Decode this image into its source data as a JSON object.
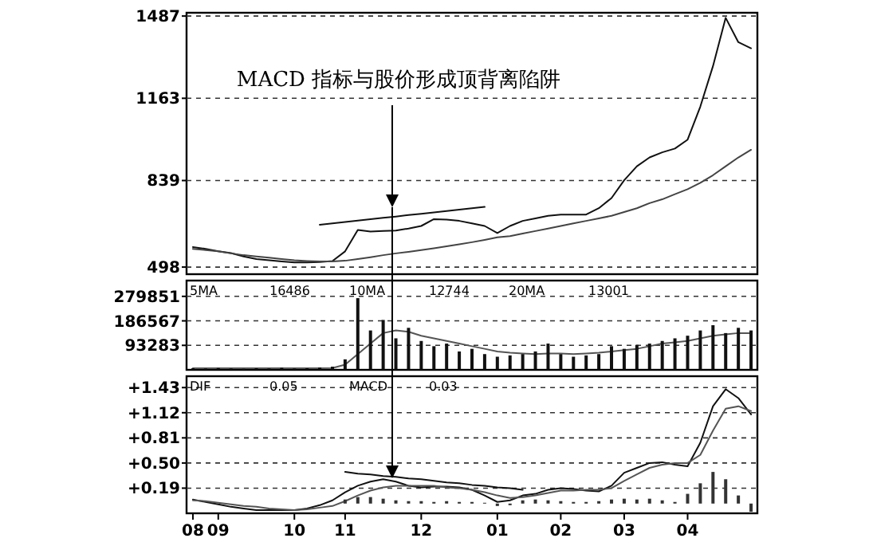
{
  "chart_data": [
    {
      "type": "line",
      "title": "MACD 指标与股价形成顶背离陷阱",
      "categories": [
        "08",
        null,
        "09",
        null,
        null,
        null,
        null,
        null,
        "10",
        null,
        null,
        null,
        "11",
        null,
        null,
        null,
        null,
        null,
        "12",
        null,
        null,
        null,
        null,
        null,
        "01",
        null,
        null,
        null,
        null,
        "02",
        null,
        null,
        null,
        null,
        "03",
        null,
        null,
        null,
        null,
        "04",
        null,
        null,
        null,
        null,
        null
      ],
      "ylim": [
        470,
        1500
      ],
      "yticks": [
        498,
        839,
        1163,
        1487
      ],
      "grid": "y",
      "tick_labels": "y",
      "series": [
        {
          "color": "#111111",
          "values": [
            577,
            570,
            560,
            553,
            540,
            530,
            525,
            520,
            516,
            516,
            518,
            522,
            560,
            644,
            638,
            640,
            642,
            650,
            660,
            687,
            685,
            680,
            670,
            660,
            632,
            660,
            680,
            690,
            700,
            705,
            705,
            705,
            730,
            770,
            840,
            895,
            930,
            950,
            965,
            1000,
            1130,
            1290,
            1480,
            1384,
            1360
          ]
        },
        {
          "color": "#444444",
          "values": [
            570,
            565,
            560,
            552,
            545,
            540,
            535,
            530,
            525,
            522,
            520,
            520,
            523,
            530,
            537,
            545,
            552,
            558,
            565,
            572,
            580,
            588,
            596,
            605,
            615,
            620,
            630,
            640,
            650,
            660,
            670,
            680,
            690,
            700,
            715,
            730,
            750,
            765,
            785,
            805,
            830,
            860,
            895,
            930,
            960
          ]
        },
        {
          "color": "#111111",
          "values": [
            null,
            null,
            null,
            null,
            null,
            null,
            null,
            null,
            null,
            null,
            665,
            670,
            676,
            681,
            687,
            692,
            697,
            703,
            708,
            713,
            719,
            724,
            730,
            735,
            null,
            null,
            null,
            null,
            null,
            null,
            null,
            null,
            null,
            null,
            null,
            null,
            null,
            null,
            null,
            null,
            null,
            null,
            null,
            null,
            null
          ]
        }
      ]
    },
    {
      "type": "bar",
      "categories": [
        "08",
        null,
        "09",
        null,
        null,
        null,
        null,
        null,
        "10",
        null,
        null,
        null,
        "11",
        null,
        null,
        null,
        null,
        null,
        "12",
        null,
        null,
        null,
        null,
        null,
        "01",
        null,
        null,
        null,
        null,
        "02",
        null,
        null,
        null,
        null,
        "03",
        null,
        null,
        null,
        null,
        "04",
        null,
        null,
        null,
        null,
        null
      ],
      "ylim": [
        0,
        340000
      ],
      "yticks": [
        93283,
        186567,
        279851
      ],
      "grid": "y",
      "tick_labels": "y",
      "annotations": [
        "5MA",
        "16486",
        "10MA",
        "12744",
        "20MA",
        "13001"
      ],
      "series": [
        {
          "color": "#111111",
          "values": [
            6000,
            5000,
            7000,
            5000,
            4000,
            6000,
            5000,
            8000,
            5000,
            6000,
            9000,
            12000,
            40000,
            273000,
            150000,
            190000,
            120000,
            160000,
            110000,
            90000,
            100000,
            70000,
            80000,
            60000,
            50000,
            55000,
            60000,
            70000,
            100000,
            60000,
            50000,
            55000,
            60000,
            90000,
            80000,
            95000,
            100000,
            110000,
            120000,
            130000,
            150000,
            170000,
            140000,
            160000,
            150000
          ]
        },
        {
          "type": "line",
          "color": "#555555",
          "values": [
            6000,
            6000,
            6000,
            6000,
            6000,
            6000,
            6000,
            6000,
            6000,
            6000,
            6000,
            7000,
            20000,
            60000,
            100000,
            140000,
            150000,
            145000,
            130000,
            120000,
            110000,
            100000,
            90000,
            80000,
            70000,
            65000,
            62000,
            60000,
            62000,
            62000,
            60000,
            62000,
            65000,
            70000,
            75000,
            80000,
            90000,
            100000,
            105000,
            110000,
            120000,
            130000,
            135000,
            140000,
            140000
          ]
        }
      ]
    },
    {
      "type": "line",
      "categories": [
        "08",
        null,
        "09",
        null,
        null,
        null,
        null,
        null,
        "10",
        null,
        null,
        null,
        "11",
        null,
        null,
        null,
        null,
        null,
        "12",
        null,
        null,
        null,
        null,
        null,
        "01",
        null,
        null,
        null,
        null,
        "02",
        null,
        null,
        null,
        null,
        "03",
        null,
        null,
        null,
        null,
        "04",
        null,
        null,
        null,
        null,
        null
      ],
      "ylim": [
        -0.12,
        1.57
      ],
      "yticks": [
        {
          "value": 0.19,
          "label": "+0.19"
        },
        {
          "value": 0.5,
          "label": "+0.50"
        },
        {
          "value": 0.81,
          "label": "+0.81"
        },
        {
          "value": 1.12,
          "label": "+1.12"
        },
        {
          "value": 1.43,
          "label": "+1.43"
        }
      ],
      "grid": "y",
      "annotations": [
        "DIF",
        "0.05",
        "MACD",
        "0.03"
      ],
      "series": [
        {
          "color": "#111111",
          "values": [
            0.05,
            0.02,
            -0.01,
            -0.04,
            -0.06,
            -0.08,
            -0.08,
            -0.08,
            -0.08,
            -0.06,
            -0.02,
            0.04,
            0.14,
            0.22,
            0.27,
            0.3,
            0.27,
            0.22,
            0.2,
            0.21,
            0.21,
            0.2,
            0.17,
            0.1,
            0.02,
            0.04,
            0.1,
            0.12,
            0.17,
            0.19,
            0.18,
            0.16,
            0.15,
            0.22,
            0.38,
            0.44,
            0.5,
            0.51,
            0.48,
            0.46,
            0.75,
            1.2,
            1.41,
            1.3,
            1.1
          ]
        },
        {
          "color": "#555555",
          "values": [
            0.04,
            0.03,
            0.01,
            -0.01,
            -0.03,
            -0.04,
            -0.06,
            -0.07,
            -0.08,
            -0.07,
            -0.05,
            -0.03,
            0.03,
            0.1,
            0.16,
            0.2,
            0.22,
            0.22,
            0.22,
            0.22,
            0.2,
            0.19,
            0.17,
            0.14,
            0.1,
            0.07,
            0.08,
            0.1,
            0.13,
            0.16,
            0.16,
            0.17,
            0.17,
            0.19,
            0.28,
            0.36,
            0.44,
            0.48,
            0.5,
            0.5,
            0.6,
            0.9,
            1.17,
            1.2,
            1.14
          ]
        },
        {
          "type": "bar",
          "color": "#333333",
          "values": [
            null,
            null,
            null,
            null,
            null,
            null,
            null,
            null,
            null,
            null,
            null,
            null,
            0.05,
            0.08,
            0.08,
            0.06,
            0.04,
            0.03,
            0.03,
            0.02,
            0.03,
            0.02,
            0.02,
            0.01,
            -0.03,
            -0.02,
            0.04,
            0.05,
            0.04,
            0.03,
            0.02,
            0.02,
            0.03,
            0.05,
            0.06,
            0.05,
            0.06,
            0.04,
            0.02,
            0.12,
            0.25,
            0.39,
            0.3,
            0.1,
            -0.1
          ]
        },
        {
          "color": "#111111",
          "values": [
            null,
            null,
            null,
            null,
            null,
            null,
            null,
            null,
            null,
            null,
            null,
            null,
            0.39,
            0.37,
            0.36,
            0.34,
            0.33,
            0.31,
            0.3,
            0.28,
            0.26,
            0.25,
            0.23,
            0.22,
            0.2,
            0.19,
            0.17,
            null,
            null,
            null,
            null,
            null,
            null,
            null,
            null,
            null,
            null,
            null,
            null,
            null,
            null,
            null,
            null,
            null,
            null
          ]
        }
      ]
    }
  ]
}
